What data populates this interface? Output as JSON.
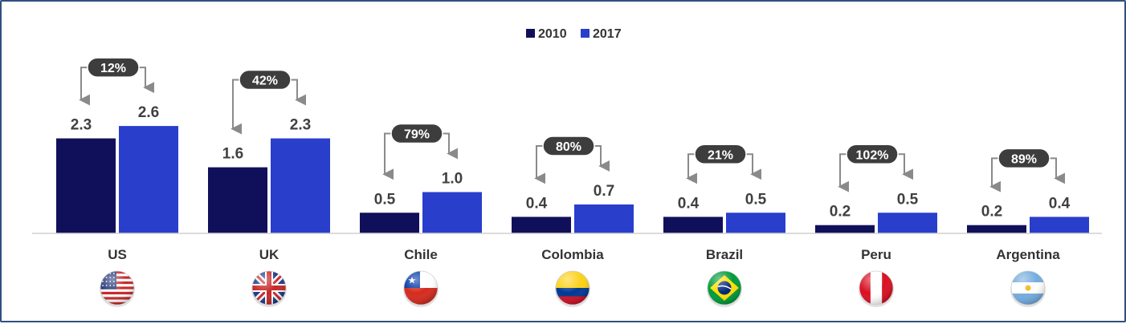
{
  "chart_data": {
    "type": "bar",
    "categories": [
      "US",
      "UK",
      "Chile",
      "Colombia",
      "Brazil",
      "Peru",
      "Argentina"
    ],
    "series": [
      {
        "name": "2010",
        "values": [
          2.3,
          1.6,
          0.5,
          0.4,
          0.4,
          0.2,
          0.2
        ],
        "color": "#10105a"
      },
      {
        "name": "2017",
        "values": [
          2.6,
          2.3,
          1.0,
          0.7,
          0.5,
          0.5,
          0.4
        ],
        "color": "#2a3ecc"
      }
    ],
    "value_labels": {
      "2010": [
        "2.3",
        "1.6",
        "0.5",
        "0.4",
        "0.4",
        "0.2",
        "0.2"
      ],
      "2017": [
        "2.6",
        "2.3",
        "1.0",
        "0.7",
        "0.5",
        "0.5",
        "0.4"
      ]
    },
    "growth_labels": [
      "12%",
      "42%",
      "79%",
      "80%",
      "21%",
      "102%",
      "89%"
    ],
    "flags": [
      "us-flag",
      "uk-flag",
      "chile-flag",
      "colombia-flag",
      "brazil-flag",
      "peru-flag",
      "argentina-flag"
    ],
    "ylim": [
      0,
      2.6
    ],
    "legend": "top-center",
    "grid": false,
    "title": "",
    "xlabel": "",
    "ylabel": ""
  }
}
